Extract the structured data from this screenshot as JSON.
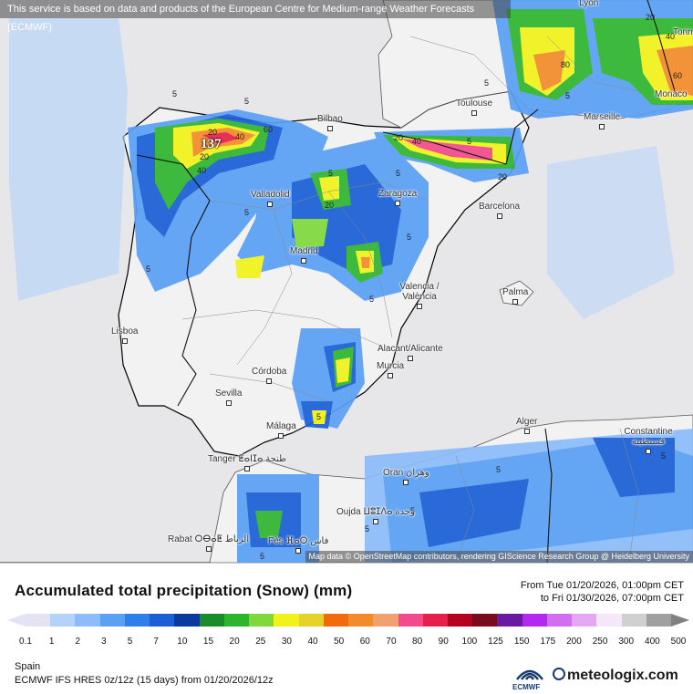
{
  "banner": "This service is based on data and products of the European Centre for Medium-range Weather Forecasts (ECMWF)",
  "attribution": "Map data © OpenStreetMap contributors, rendering GIScience Research Group @ Heidelberg University",
  "cities": [
    {
      "name": "Lyon",
      "marker": false
    },
    {
      "name": "Torin",
      "marker": false
    },
    {
      "name": "Toulouse",
      "marker": true
    },
    {
      "name": "Marseille",
      "marker": true
    },
    {
      "name": "Monaco",
      "marker": false
    },
    {
      "name": "Bilbao",
      "marker": true
    },
    {
      "name": "Valladolid",
      "marker": true
    },
    {
      "name": "Zaragoza",
      "marker": true
    },
    {
      "name": "Barcelona",
      "marker": true
    },
    {
      "name": "Madrid",
      "marker": true
    },
    {
      "name": "Valencia / València",
      "marker": true
    },
    {
      "name": "Palma",
      "marker": true
    },
    {
      "name": "Lisboa",
      "marker": true
    },
    {
      "name": "Alacant/Alicante",
      "marker": true
    },
    {
      "name": "Murcia",
      "marker": true
    },
    {
      "name": "Córdoba",
      "marker": true
    },
    {
      "name": "Sevilla",
      "marker": true
    },
    {
      "name": "Málaga",
      "marker": true
    },
    {
      "name": "Alger",
      "marker": true
    },
    {
      "name": "Constantine قسنطينة",
      "marker": true
    },
    {
      "name": "Tanger ⵟⴰⵏⵊⴰ طنجة",
      "marker": true
    },
    {
      "name": "Oran وهران",
      "marker": true
    },
    {
      "name": "Oujda ⵡⵓⵊⴷⴰ وجدة",
      "marker": true
    },
    {
      "name": "Rabat ⵔⴱⴰⵟ الرباط",
      "marker": true
    },
    {
      "name": "Fès ⴼⴰⵙ فاس",
      "marker": true
    }
  ],
  "contour_labels": [
    "5",
    "5",
    "5",
    "5",
    "20",
    "40",
    "60",
    "20",
    "40",
    "20",
    "5",
    "20",
    "5",
    "40",
    "5",
    "20",
    "60",
    "40",
    "20",
    "5",
    "5",
    "5",
    "5",
    "5",
    "5",
    "5",
    "5",
    "5",
    "5",
    "80"
  ],
  "max_label": "137",
  "legend": {
    "title": "Accumulated total precipitation (Snow) (mm)",
    "from": "From Tue 01/20/2026, 01:00pm CET",
    "to": "to Fri 01/30/2026, 07:00pm CET",
    "ticks": [
      "0.1",
      "1",
      "2",
      "3",
      "5",
      "7",
      "10",
      "15",
      "20",
      "25",
      "30",
      "40",
      "50",
      "60",
      "70",
      "80",
      "90",
      "100",
      "125",
      "150",
      "175",
      "200",
      "250",
      "300",
      "400",
      "500"
    ],
    "colors": [
      "#e3e3f4",
      "#b4d3fa",
      "#8cbcfa",
      "#5aa0f5",
      "#2f7fe8",
      "#1a5fd6",
      "#0b3a9c",
      "#1a8c2a",
      "#2eb52e",
      "#7fd93a",
      "#f2f21a",
      "#e6d02a",
      "#f26a0c",
      "#f28c2a",
      "#f2a070",
      "#f24a8c",
      "#e6204a",
      "#b4001e",
      "#7a0a1e",
      "#6a1aa0",
      "#b428f0",
      "#d070f0",
      "#e6a8f5",
      "#f5e6f8",
      "#d0d0d0",
      "#a0a0a0"
    ]
  },
  "region": "Spain",
  "model": "ECMWF IFS HRES 0z/12z (15 days) from 01/20/2026/12z",
  "logo_ecmwf": "ECMWF",
  "logo_meteologix": "meteologix.com"
}
